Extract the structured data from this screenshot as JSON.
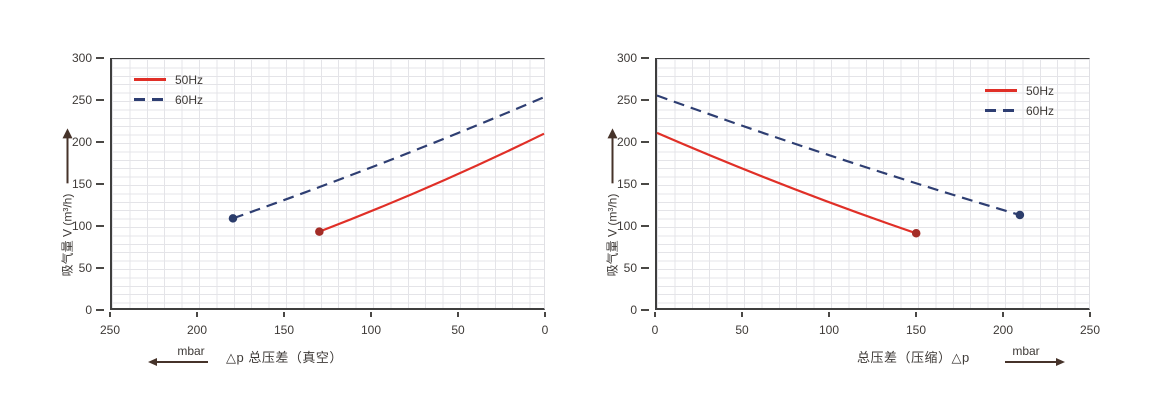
{
  "colors": {
    "red": "#e02f27",
    "red_dot": "#a32c26",
    "navy": "#2e3e72",
    "navy_dot": "#2b3c6b",
    "text": "#3e3a37",
    "arrow": "#46332a",
    "grid": "#e4e4e8"
  },
  "chart_data": [
    {
      "type": "line",
      "title": "",
      "ylabel": "吸气量 V (m³/h)",
      "xlabel": "△p  总压差（真空）",
      "unit": "mbar",
      "unit_arrow": "left",
      "xlim": [
        250,
        0
      ],
      "ylim": [
        0,
        300
      ],
      "xticks": [
        "250",
        "200",
        "150",
        "100",
        "50",
        "0"
      ],
      "yticks": [
        "300",
        "250",
        "200",
        "150",
        "100",
        "50",
        "0"
      ],
      "grid": true,
      "legend_position": "top-left",
      "legend": [
        {
          "label": "50Hz",
          "style": "solid",
          "color": "red"
        },
        {
          "label": "60Hz",
          "style": "dashed",
          "color": "navy"
        }
      ],
      "series": [
        {
          "name": "50Hz",
          "color": "red",
          "dash": false,
          "x": [
            130,
            0
          ],
          "y": [
            92,
            210
          ],
          "dot": [
            130,
            92
          ]
        },
        {
          "name": "60Hz",
          "color": "navy",
          "dash": true,
          "x": [
            180,
            0
          ],
          "y": [
            108,
            254
          ],
          "dot": [
            180,
            108
          ]
        }
      ]
    },
    {
      "type": "line",
      "title": "",
      "ylabel": "吸气量 V (m³/h)",
      "xlabel": "总压差（压缩）△p",
      "unit": "mbar",
      "unit_arrow": "right",
      "xlim": [
        0,
        250
      ],
      "ylim": [
        0,
        300
      ],
      "xticks": [
        "0",
        "50",
        "100",
        "150",
        "200",
        "250"
      ],
      "yticks": [
        "300",
        "250",
        "200",
        "150",
        "100",
        "50",
        "0"
      ],
      "grid": true,
      "legend_position": "top-right",
      "legend": [
        {
          "label": "50Hz",
          "style": "solid",
          "color": "red"
        },
        {
          "label": "60Hz",
          "style": "dashed",
          "color": "navy"
        }
      ],
      "series": [
        {
          "name": "50Hz",
          "color": "red",
          "dash": false,
          "x": [
            0,
            150
          ],
          "y": [
            211,
            90
          ],
          "dot": [
            150,
            90
          ]
        },
        {
          "name": "60Hz",
          "color": "navy",
          "dash": true,
          "x": [
            0,
            210
          ],
          "y": [
            256,
            112
          ],
          "dot": [
            210,
            112
          ]
        }
      ]
    }
  ]
}
